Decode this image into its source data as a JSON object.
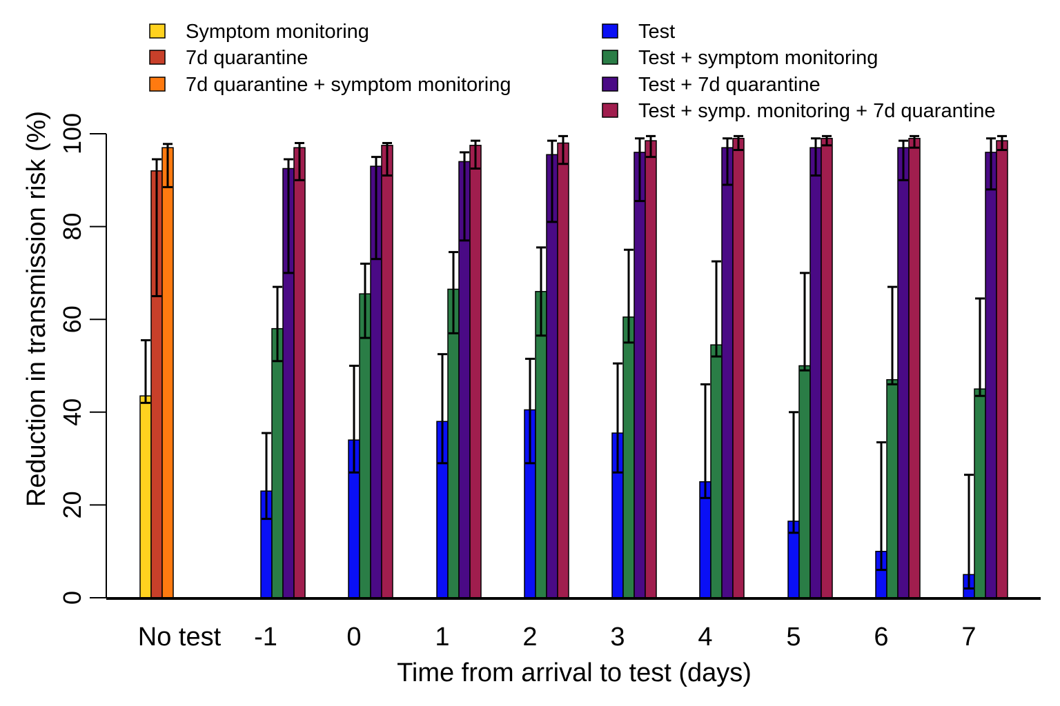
{
  "chart_data": {
    "type": "bar",
    "title": "",
    "xlabel": "Time from arrival to test (days)",
    "ylabel": "Reduction in transmission risk (%)",
    "ylim": [
      0,
      100
    ],
    "yticks": [
      0,
      20,
      40,
      60,
      80,
      100
    ],
    "grid": false,
    "error_bars": true,
    "legend_position": "top",
    "categories": [
      "No test",
      "-1",
      "0",
      "1",
      "2",
      "3",
      "4",
      "5",
      "6",
      "7"
    ],
    "series": [
      {
        "name": "Symptom monitoring",
        "color": "#FFD21F",
        "values": [
          43.5,
          null,
          null,
          null,
          null,
          null,
          null,
          null,
          null,
          null
        ],
        "lower": [
          42.0,
          null,
          null,
          null,
          null,
          null,
          null,
          null,
          null,
          null
        ],
        "upper": [
          55.5,
          null,
          null,
          null,
          null,
          null,
          null,
          null,
          null,
          null
        ]
      },
      {
        "name": "7d quarantine",
        "color": "#C8402A",
        "values": [
          92.0,
          null,
          null,
          null,
          null,
          null,
          null,
          null,
          null,
          null
        ],
        "lower": [
          65.0,
          null,
          null,
          null,
          null,
          null,
          null,
          null,
          null,
          null
        ],
        "upper": [
          94.5,
          null,
          null,
          null,
          null,
          null,
          null,
          null,
          null,
          null
        ]
      },
      {
        "name": "7d quarantine + symptom monitoring",
        "color": "#FF7A10",
        "values": [
          97.0,
          null,
          null,
          null,
          null,
          null,
          null,
          null,
          null,
          null
        ],
        "lower": [
          88.5,
          null,
          null,
          null,
          null,
          null,
          null,
          null,
          null,
          null
        ],
        "upper": [
          97.8,
          null,
          null,
          null,
          null,
          null,
          null,
          null,
          null,
          null
        ]
      },
      {
        "name": "Test",
        "color": "#0A10F5",
        "values": [
          null,
          23.0,
          34.0,
          38.0,
          40.5,
          35.5,
          25.0,
          16.5,
          10.0,
          5.0
        ],
        "lower": [
          null,
          17.0,
          27.0,
          29.0,
          29.0,
          27.0,
          21.5,
          14.0,
          6.0,
          2.0
        ],
        "upper": [
          null,
          35.5,
          50.0,
          52.5,
          51.5,
          50.5,
          46.0,
          40.0,
          33.5,
          26.5
        ]
      },
      {
        "name": "Test + symptom monitoring",
        "color": "#2A7D46",
        "values": [
          null,
          58.0,
          65.5,
          66.5,
          66.0,
          60.5,
          54.5,
          50.0,
          47.0,
          45.0
        ],
        "lower": [
          null,
          51.0,
          56.0,
          57.0,
          56.5,
          55.0,
          52.0,
          49.0,
          46.0,
          43.5
        ],
        "upper": [
          null,
          67.0,
          72.0,
          74.5,
          75.5,
          75.0,
          72.5,
          70.0,
          67.0,
          64.5
        ]
      },
      {
        "name": "Test + 7d quarantine",
        "color": "#4A0A85",
        "values": [
          null,
          92.5,
          93.0,
          94.0,
          95.5,
          96.0,
          97.0,
          97.0,
          97.0,
          96.0
        ],
        "lower": [
          null,
          70.0,
          73.0,
          77.0,
          81.0,
          85.5,
          89.0,
          91.0,
          90.0,
          88.0
        ],
        "upper": [
          null,
          94.5,
          95.0,
          96.0,
          98.5,
          99.0,
          99.0,
          99.0,
          98.5,
          99.0
        ]
      },
      {
        "name": "Test + symp. monitoring + 7d quarantine",
        "color": "#A01E4E",
        "values": [
          null,
          97.0,
          97.5,
          97.5,
          98.0,
          98.5,
          99.0,
          99.0,
          99.0,
          98.5
        ],
        "lower": [
          null,
          90.0,
          91.0,
          92.5,
          93.5,
          95.0,
          96.5,
          97.5,
          97.0,
          96.5
        ],
        "upper": [
          null,
          98.0,
          98.0,
          98.5,
          99.5,
          99.5,
          99.5,
          99.5,
          99.5,
          99.5
        ]
      }
    ]
  }
}
